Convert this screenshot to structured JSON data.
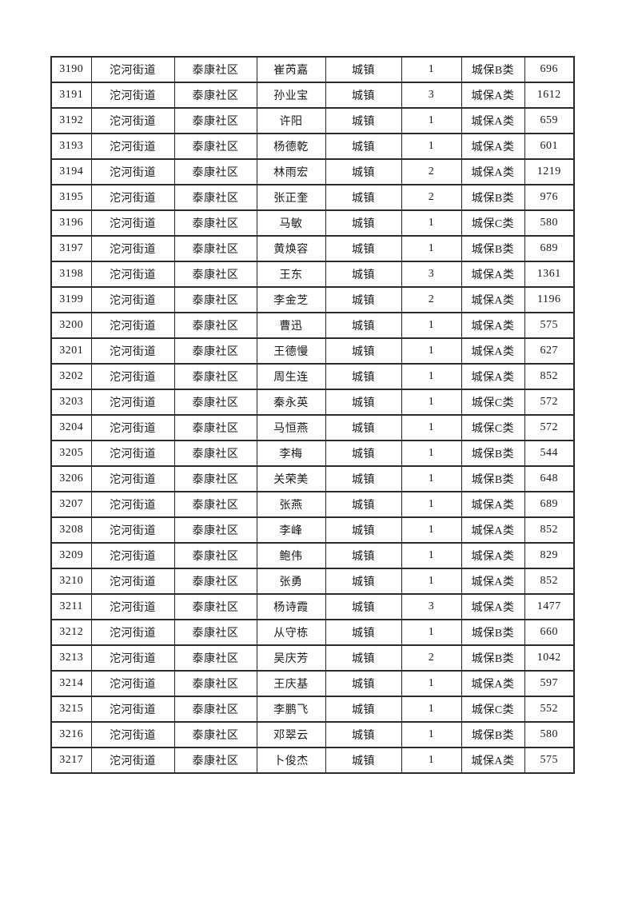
{
  "table": {
    "columns": [
      "serial",
      "street",
      "community",
      "person_name",
      "residence_type",
      "headcount",
      "category",
      "amount"
    ],
    "rows": [
      [
        "3190",
        "沱河街道",
        "泰康社区",
        "崔芮嘉",
        "城镇",
        "1",
        "城保B类",
        "696"
      ],
      [
        "3191",
        "沱河街道",
        "泰康社区",
        "孙业宝",
        "城镇",
        "3",
        "城保A类",
        "1612"
      ],
      [
        "3192",
        "沱河街道",
        "泰康社区",
        "许阳",
        "城镇",
        "1",
        "城保A类",
        "659"
      ],
      [
        "3193",
        "沱河街道",
        "泰康社区",
        "杨德乾",
        "城镇",
        "1",
        "城保A类",
        "601"
      ],
      [
        "3194",
        "沱河街道",
        "泰康社区",
        "林雨宏",
        "城镇",
        "2",
        "城保A类",
        "1219"
      ],
      [
        "3195",
        "沱河街道",
        "泰康社区",
        "张正奎",
        "城镇",
        "2",
        "城保B类",
        "976"
      ],
      [
        "3196",
        "沱河街道",
        "泰康社区",
        "马敏",
        "城镇",
        "1",
        "城保C类",
        "580"
      ],
      [
        "3197",
        "沱河街道",
        "泰康社区",
        "黄焕容",
        "城镇",
        "1",
        "城保B类",
        "689"
      ],
      [
        "3198",
        "沱河街道",
        "泰康社区",
        "王东",
        "城镇",
        "3",
        "城保A类",
        "1361"
      ],
      [
        "3199",
        "沱河街道",
        "泰康社区",
        "李金芝",
        "城镇",
        "2",
        "城保A类",
        "1196"
      ],
      [
        "3200",
        "沱河街道",
        "泰康社区",
        "曹迅",
        "城镇",
        "1",
        "城保A类",
        "575"
      ],
      [
        "3201",
        "沱河街道",
        "泰康社区",
        "王德慢",
        "城镇",
        "1",
        "城保A类",
        "627"
      ],
      [
        "3202",
        "沱河街道",
        "泰康社区",
        "周生连",
        "城镇",
        "1",
        "城保A类",
        "852"
      ],
      [
        "3203",
        "沱河街道",
        "泰康社区",
        "秦永英",
        "城镇",
        "1",
        "城保C类",
        "572"
      ],
      [
        "3204",
        "沱河街道",
        "泰康社区",
        "马恒燕",
        "城镇",
        "1",
        "城保C类",
        "572"
      ],
      [
        "3205",
        "沱河街道",
        "泰康社区",
        "李梅",
        "城镇",
        "1",
        "城保B类",
        "544"
      ],
      [
        "3206",
        "沱河街道",
        "泰康社区",
        "关荣美",
        "城镇",
        "1",
        "城保B类",
        "648"
      ],
      [
        "3207",
        "沱河街道",
        "泰康社区",
        "张燕",
        "城镇",
        "1",
        "城保A类",
        "689"
      ],
      [
        "3208",
        "沱河街道",
        "泰康社区",
        "李峰",
        "城镇",
        "1",
        "城保A类",
        "852"
      ],
      [
        "3209",
        "沱河街道",
        "泰康社区",
        "鲍伟",
        "城镇",
        "1",
        "城保A类",
        "829"
      ],
      [
        "3210",
        "沱河街道",
        "泰康社区",
        "张勇",
        "城镇",
        "1",
        "城保A类",
        "852"
      ],
      [
        "3211",
        "沱河街道",
        "泰康社区",
        "杨诗霞",
        "城镇",
        "3",
        "城保A类",
        "1477"
      ],
      [
        "3212",
        "沱河街道",
        "泰康社区",
        "从守栋",
        "城镇",
        "1",
        "城保B类",
        "660"
      ],
      [
        "3213",
        "沱河街道",
        "泰康社区",
        "吴庆芳",
        "城镇",
        "2",
        "城保B类",
        "1042"
      ],
      [
        "3214",
        "沱河街道",
        "泰康社区",
        "王庆基",
        "城镇",
        "1",
        "城保A类",
        "597"
      ],
      [
        "3215",
        "沱河街道",
        "泰康社区",
        "李鹏飞",
        "城镇",
        "1",
        "城保C类",
        "552"
      ],
      [
        "3216",
        "沱河街道",
        "泰康社区",
        "邓翠云",
        "城镇",
        "1",
        "城保B类",
        "580"
      ],
      [
        "3217",
        "沱河街道",
        "泰康社区",
        "卜俊杰",
        "城镇",
        "1",
        "城保A类",
        "575"
      ]
    ]
  }
}
